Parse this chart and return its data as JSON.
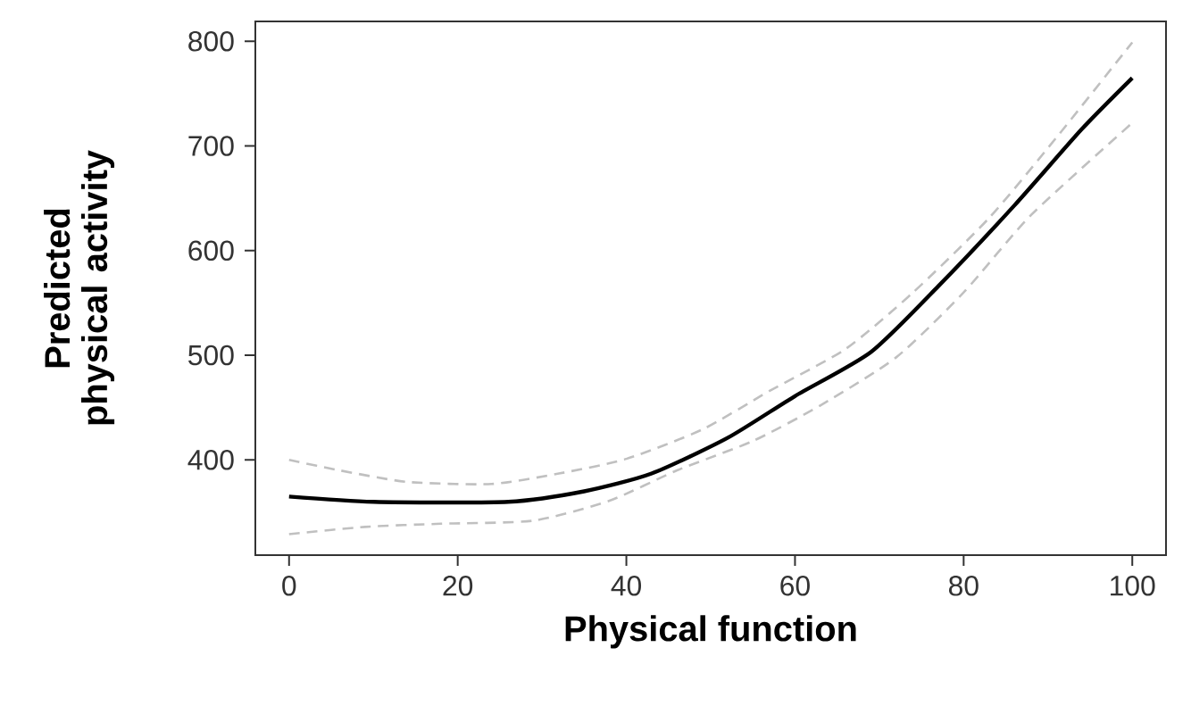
{
  "chart_data": {
    "type": "line",
    "xlabel": "Physical function",
    "ylabel": "Predicted physical activity",
    "xlim": [
      -4,
      104
    ],
    "ylim": [
      309,
      819
    ],
    "xticks": [
      0,
      20,
      40,
      60,
      80,
      100
    ],
    "yticks": [
      400,
      500,
      600,
      700,
      800
    ],
    "grid": false,
    "marker": "none",
    "series": [
      {
        "color": "#000000",
        "line_style": "solid",
        "x": [
          0,
          10,
          26,
          35,
          43,
          52,
          60,
          69,
          77,
          86,
          94,
          100
        ],
        "values": [
          365,
          360,
          360,
          370,
          387,
          421,
          461,
          503,
          566,
          643,
          716,
          765
        ]
      },
      {
        "color": "#c0c0c0",
        "line_style": "dashed",
        "x": [
          0,
          6,
          14,
          24,
          32,
          40,
          49,
          57,
          66,
          74,
          83,
          91,
          100
        ],
        "values": [
          400,
          390,
          379,
          377,
          387,
          401,
          429,
          466,
          506,
          560,
          631,
          708,
          799
        ]
      },
      {
        "color": "#c0c0c0",
        "line_style": "dashed",
        "x": [
          0,
          9,
          18,
          29,
          38,
          46,
          55,
          63,
          72,
          80,
          88,
          100
        ],
        "values": [
          329,
          336,
          339,
          342,
          361,
          390,
          418,
          452,
          498,
          560,
          634,
          722
        ]
      }
    ]
  }
}
